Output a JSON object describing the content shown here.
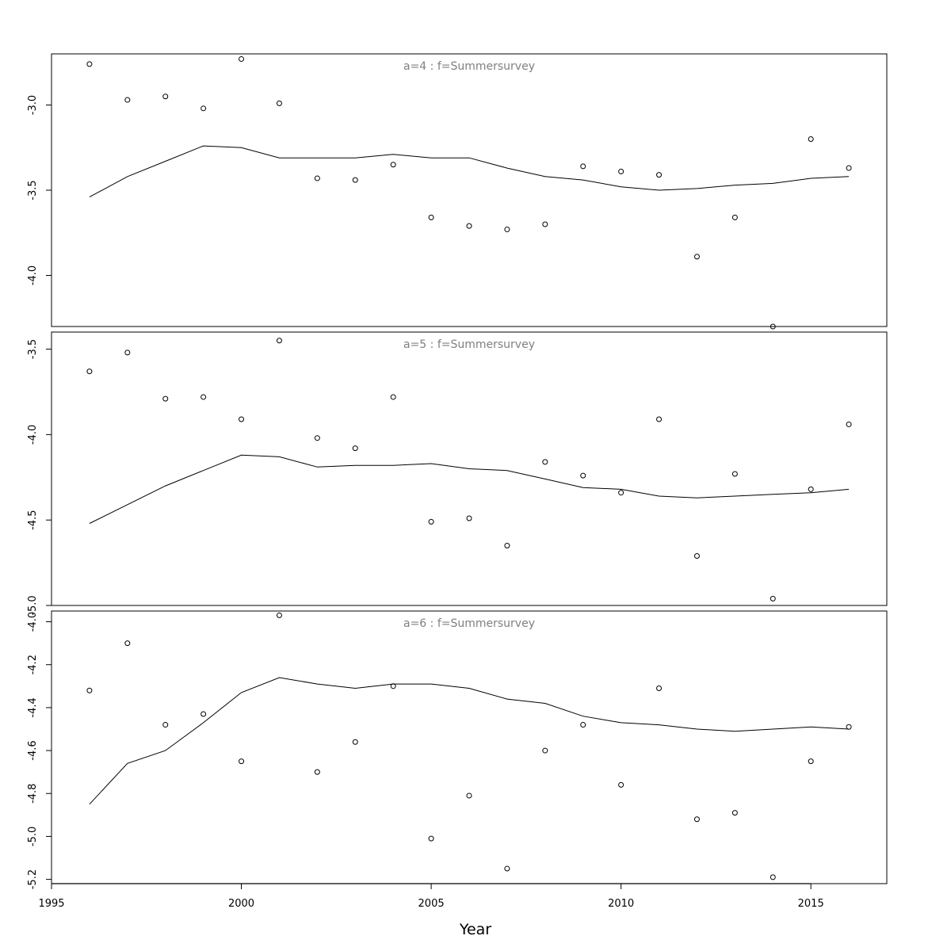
{
  "chart_data": {
    "type": "scatter",
    "xlabel": "Year",
    "xlim": [
      1995,
      2017
    ],
    "x_ticks": [
      1995,
      2000,
      2005,
      2010,
      2015
    ],
    "x_tick_labels": [
      "1995",
      "2000",
      "2005",
      "2010",
      "2015"
    ],
    "panels": [
      {
        "title": "a=4  :  f=Summersurvey",
        "ylim": [
          -4.3,
          -2.7
        ],
        "y_ticks": [
          -3.0,
          -3.5,
          -4.0
        ],
        "y_tick_labels": [
          "-3.0",
          "-3.5",
          "-4.0"
        ],
        "points": {
          "x": [
            1996,
            1997,
            1998,
            1999,
            2000,
            2001,
            2002,
            2003,
            2004,
            2005,
            2006,
            2007,
            2008,
            2009,
            2010,
            2011,
            2012,
            2013,
            2014,
            2015,
            2016
          ],
          "y": [
            -2.76,
            -2.97,
            -2.95,
            -3.02,
            -2.73,
            -2.99,
            -3.43,
            -3.44,
            -3.35,
            -3.66,
            -3.71,
            -3.73,
            -3.7,
            -3.36,
            -3.39,
            -3.41,
            -3.89,
            -3.66,
            -4.3,
            -3.2,
            -3.37
          ]
        },
        "fitted": {
          "x": [
            1996,
            1997,
            1998,
            1999,
            2000,
            2001,
            2002,
            2003,
            2004,
            2005,
            2006,
            2007,
            2008,
            2009,
            2010,
            2011,
            2012,
            2013,
            2014,
            2015,
            2016
          ],
          "y": [
            -3.54,
            -3.42,
            -3.33,
            -3.24,
            -3.25,
            -3.31,
            -3.31,
            -3.31,
            -3.29,
            -3.31,
            -3.31,
            -3.37,
            -3.42,
            -3.44,
            -3.48,
            -3.5,
            -3.49,
            -3.47,
            -3.46,
            -3.43,
            -3.42
          ]
        }
      },
      {
        "title": "a=5  :  f=Summersurvey",
        "ylim": [
          -5.0,
          -3.4
        ],
        "y_ticks": [
          -3.5,
          -4.0,
          -4.5,
          -5.0
        ],
        "y_tick_labels": [
          "-3.5",
          "-4.0",
          "-4.5",
          "-5.0"
        ],
        "points": {
          "x": [
            1996,
            1997,
            1998,
            1999,
            2000,
            2001,
            2002,
            2003,
            2004,
            2005,
            2006,
            2007,
            2008,
            2009,
            2010,
            2011,
            2012,
            2013,
            2014,
            2015,
            2016
          ],
          "y": [
            -3.63,
            -3.52,
            -3.79,
            -3.78,
            -3.91,
            -3.45,
            -4.02,
            -4.08,
            -3.78,
            -4.51,
            -4.49,
            -4.65,
            -4.16,
            -4.24,
            -4.34,
            -3.91,
            -4.71,
            -4.23,
            -4.96,
            -4.32,
            -3.94
          ]
        },
        "fitted": {
          "x": [
            1996,
            1997,
            1998,
            1999,
            2000,
            2001,
            2002,
            2003,
            2004,
            2005,
            2006,
            2007,
            2008,
            2009,
            2010,
            2011,
            2012,
            2013,
            2014,
            2015,
            2016
          ],
          "y": [
            -4.52,
            -4.41,
            -4.3,
            -4.21,
            -4.12,
            -4.13,
            -4.19,
            -4.18,
            -4.18,
            -4.17,
            -4.2,
            -4.21,
            -4.26,
            -4.31,
            -4.32,
            -4.36,
            -4.37,
            -4.36,
            -4.35,
            -4.34,
            -4.32
          ]
        }
      },
      {
        "title": "a=6  :  f=Summersurvey",
        "ylim": [
          -5.22,
          -3.95
        ],
        "y_ticks": [
          -4.0,
          -4.2,
          -4.4,
          -4.6,
          -4.8,
          -5.0,
          -5.2
        ],
        "y_tick_labels": [
          "-4.0",
          "-4.2",
          "-4.4",
          "-4.6",
          "-4.8",
          "-5.0",
          "-5.2"
        ],
        "points": {
          "x": [
            1996,
            1997,
            1998,
            1999,
            2000,
            2001,
            2002,
            2003,
            2004,
            2005,
            2006,
            2007,
            2008,
            2009,
            2010,
            2011,
            2012,
            2013,
            2014,
            2015,
            2016
          ],
          "y": [
            -4.32,
            -4.1,
            -4.48,
            -4.43,
            -4.65,
            -3.97,
            -4.7,
            -4.56,
            -4.3,
            -5.01,
            -4.81,
            -5.15,
            -4.6,
            -4.48,
            -4.76,
            -4.31,
            -4.92,
            -4.89,
            -5.19,
            -4.65,
            -4.49
          ]
        },
        "fitted": {
          "x": [
            1996,
            1997,
            1998,
            1999,
            2000,
            2001,
            2002,
            2003,
            2004,
            2005,
            2006,
            2007,
            2008,
            2009,
            2010,
            2011,
            2012,
            2013,
            2014,
            2015,
            2016
          ],
          "y": [
            -4.85,
            -4.66,
            -4.6,
            -4.47,
            -4.33,
            -4.26,
            -4.29,
            -4.31,
            -4.29,
            -4.29,
            -4.31,
            -4.36,
            -4.38,
            -4.44,
            -4.47,
            -4.48,
            -4.5,
            -4.51,
            -4.5,
            -4.49,
            -4.5
          ]
        }
      }
    ]
  }
}
